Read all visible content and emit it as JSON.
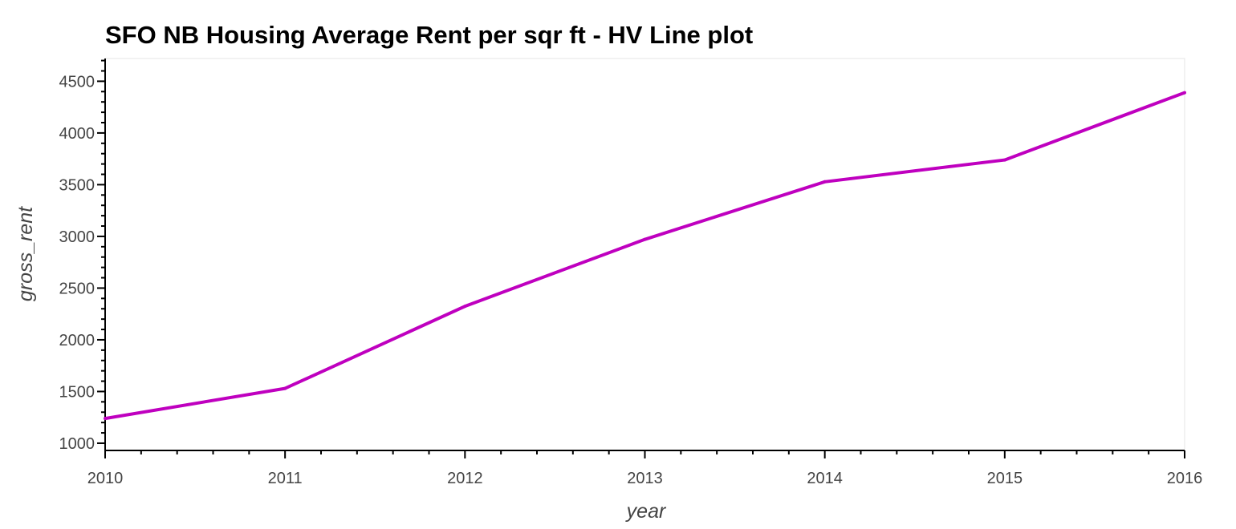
{
  "chart_data": {
    "type": "line",
    "title": "SFO NB Housing Average Rent per sqr ft - HV Line plot",
    "xlabel": "year",
    "ylabel": "gross_rent",
    "x": [
      2010,
      2011,
      2012,
      2013,
      2014,
      2015,
      2016
    ],
    "series": [
      {
        "values": [
          1239,
          1530,
          2324,
          2971,
          3528,
          3739,
          4390
        ],
        "color": "#bf00bf"
      }
    ],
    "xlim": [
      2010,
      2016
    ],
    "ylim": [
      930,
      4720
    ],
    "x_ticks": [
      "2010",
      "2011",
      "2012",
      "2013",
      "2014",
      "2015",
      "2016"
    ],
    "y_ticks": [
      "1000",
      "1500",
      "2000",
      "2500",
      "3000",
      "3500",
      "4000",
      "4500"
    ],
    "grid": false,
    "legend": "none"
  }
}
